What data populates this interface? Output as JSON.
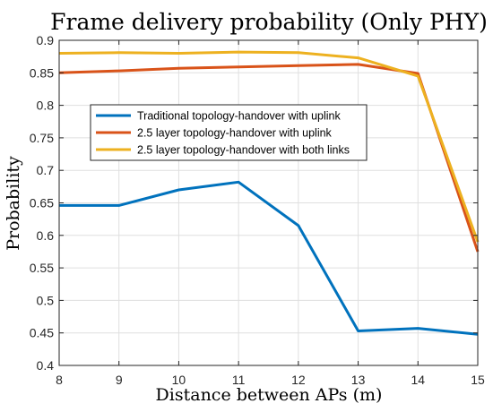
{
  "chart_data": {
    "type": "line",
    "title": "Frame delivery probability (Only PHY)",
    "xlabel": "Distance between APs (m)",
    "ylabel": "Probability",
    "x": [
      8,
      9,
      10,
      11,
      12,
      13,
      14,
      15
    ],
    "xlim": [
      8,
      15
    ],
    "ylim": [
      0.4,
      0.9
    ],
    "xticks": [
      "8",
      "9",
      "10",
      "11",
      "12",
      "13",
      "14",
      "15"
    ],
    "yticks": [
      "0.4",
      "0.45",
      "0.5",
      "0.55",
      "0.6",
      "0.65",
      "0.7",
      "0.75",
      "0.8",
      "0.85",
      "0.9"
    ],
    "grid": true,
    "legend_position": "upper-left inside",
    "series": [
      {
        "name": "Traditional topology-handover with uplink",
        "color": "#0072bd",
        "values": [
          0.646,
          0.646,
          0.67,
          0.682,
          0.615,
          0.453,
          0.457,
          0.448
        ]
      },
      {
        "name": "2.5 layer topology-handover with uplink",
        "color": "#d95319",
        "values": [
          0.85,
          0.853,
          0.857,
          0.859,
          0.861,
          0.863,
          0.849,
          0.575
        ]
      },
      {
        "name": "2.5 layer topology-handover with both links",
        "color": "#edb120",
        "values": [
          0.88,
          0.881,
          0.88,
          0.882,
          0.881,
          0.873,
          0.845,
          0.59
        ]
      }
    ]
  }
}
